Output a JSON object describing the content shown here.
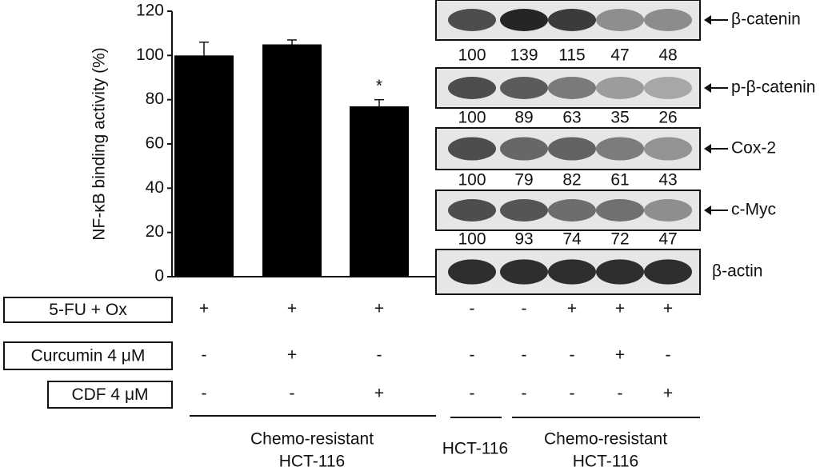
{
  "chart_data": {
    "type": "bar",
    "ylabel": "NF-κB binding activity (%)",
    "categories": [
      null,
      null,
      null
    ],
    "values": [
      100,
      105,
      77
    ],
    "error": [
      6,
      2,
      3
    ],
    "significance": [
      null,
      null,
      "*"
    ],
    "color": "#000000",
    "ylim": [
      0,
      120
    ],
    "yticks": [
      0,
      20,
      40,
      60,
      80,
      100,
      120
    ],
    "grid": false
  },
  "blots": [
    {
      "label": "β-catenin",
      "values": [
        100,
        139,
        115,
        47,
        48
      ]
    },
    {
      "label": "p-β-catenin",
      "values": [
        100,
        89,
        63,
        35,
        26
      ]
    },
    {
      "label": "Cox-2",
      "values": [
        100,
        79,
        82,
        61,
        43
      ]
    },
    {
      "label": "c-Myc",
      "values": [
        100,
        93,
        74,
        72,
        47
      ]
    },
    {
      "label": "β-actin"
    }
  ],
  "treatments": [
    {
      "label": "5-FU + Ox",
      "chart": [
        "+",
        "+",
        "+"
      ],
      "blot": [
        "-",
        "-",
        "+",
        "+",
        "+"
      ]
    },
    {
      "label": "Curcumin 4 μM",
      "chart": [
        "-",
        "+",
        "-"
      ],
      "blot": [
        "-",
        "-",
        "-",
        "+",
        "-"
      ]
    },
    {
      "label": "CDF 4 μM",
      "chart": [
        "-",
        "-",
        "+"
      ],
      "blot": [
        "-",
        "-",
        "-",
        "-",
        "+"
      ]
    }
  ],
  "groups": {
    "chart": [
      "Chemo-resistant",
      "HCT-116"
    ],
    "blot_parental": "HCT-116",
    "blot_resistant": [
      "Chemo-resistant",
      "HCT-116"
    ]
  }
}
